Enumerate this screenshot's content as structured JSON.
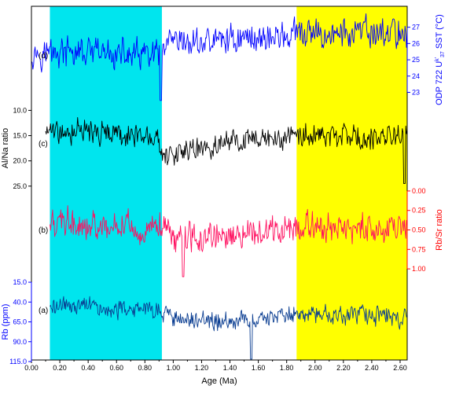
{
  "chart_data": {
    "type": "line",
    "x_axis": {
      "label": "Age (Ma)",
      "range": [
        0.0,
        2.65
      ],
      "ticks": [
        0.0,
        0.2,
        0.4,
        0.6,
        0.8,
        1.0,
        1.2,
        1.4,
        1.6,
        1.8,
        2.0,
        2.2,
        2.4,
        2.6
      ],
      "tick_labels": [
        "0.00",
        "0.20",
        "0.40",
        "0.60",
        "0.80",
        "1.00",
        "1.20",
        "1.40",
        "1.60",
        "1.80",
        "2.00",
        "2.20",
        "2.40",
        "2.60"
      ]
    },
    "shaded_bands": [
      {
        "x_from": 0.13,
        "x_to": 0.92,
        "color": "#00e5ee"
      },
      {
        "x_from": 1.87,
        "x_to": 2.65,
        "color": "#ffff00"
      }
    ],
    "panels": [
      {
        "id": "d",
        "label": "(d)",
        "axis_side": "right",
        "axis_label": "ODP 722 U^k'37 SST (°C)",
        "axis_label_parts": [
          "ODP 722 U",
          "k'",
          "37",
          " SST (°C)"
        ],
        "color": "#0000ff",
        "axis_color": "#0000ff",
        "ticks": [
          23,
          24,
          25,
          26,
          27
        ],
        "tick_labels": [
          "23",
          "24",
          "25",
          "26",
          "27"
        ],
        "range": [
          22.3,
          27.9
        ],
        "reversed": false,
        "mean_profile": [
          [
            0.0,
            25.5
          ],
          [
            0.9,
            25.2
          ],
          [
            0.95,
            25.8
          ],
          [
            1.4,
            26.3
          ],
          [
            1.9,
            26.5
          ],
          [
            2.65,
            26.7
          ]
        ],
        "amplitude": 1.1,
        "spike": {
          "x": 0.91,
          "value": 22.5
        }
      },
      {
        "id": "c",
        "label": "(c)",
        "axis_side": "left",
        "axis_label": "Al/Na ratio",
        "color": "#000000",
        "axis_color": "#000000",
        "ticks": [
          10.0,
          15.0,
          20.0,
          25.0
        ],
        "tick_labels": [
          "10.0",
          "15.0",
          "20.0",
          "25.0"
        ],
        "range": [
          9.0,
          25.5
        ],
        "reversed": true,
        "mean_profile": [
          [
            0.1,
            14.0
          ],
          [
            0.9,
            15.5
          ],
          [
            0.95,
            18.5
          ],
          [
            1.4,
            16.5
          ],
          [
            1.9,
            15.0
          ],
          [
            2.65,
            15.5
          ]
        ],
        "amplitude": 2.8,
        "spike": {
          "x": 2.63,
          "value": 24.5
        }
      },
      {
        "id": "b",
        "label": "(b)",
        "axis_side": "right",
        "axis_label": "Rb/Sr ratio",
        "color": "#ff1060",
        "axis_color": "#ff0000",
        "ticks": [
          0.0,
          0.25,
          0.5,
          0.75,
          1.0
        ],
        "tick_labels": [
          "0.00",
          "0.25",
          "0.50",
          "0.75",
          "1.00"
        ],
        "range": [
          -0.05,
          1.1
        ],
        "reversed": true,
        "mean_profile": [
          [
            0.13,
            0.42
          ],
          [
            0.9,
            0.45
          ],
          [
            1.0,
            0.62
          ],
          [
            1.4,
            0.55
          ],
          [
            1.9,
            0.45
          ],
          [
            2.65,
            0.48
          ]
        ],
        "amplitude": 0.22,
        "spike": {
          "x": 1.07,
          "value": 1.12
        }
      },
      {
        "id": "a",
        "label": "(a)",
        "axis_side": "left",
        "axis_label": "Rb (ppm)",
        "color": "#0a3d91",
        "axis_color": "#0000ff",
        "ticks": [
          15.0,
          40.0,
          65.0,
          90.0,
          115.0
        ],
        "tick_labels": [
          "15.0",
          "40.0",
          "65.0",
          "90.0",
          "115.0"
        ],
        "range": [
          10.0,
          115.0
        ],
        "reversed": true,
        "mean_profile": [
          [
            0.13,
            45.0
          ],
          [
            0.9,
            50.0
          ],
          [
            1.0,
            60.0
          ],
          [
            1.4,
            65.0
          ],
          [
            1.9,
            55.0
          ],
          [
            2.65,
            58.0
          ]
        ],
        "amplitude": 14.0,
        "spike": {
          "x": 1.55,
          "value": 112.0
        }
      }
    ]
  }
}
